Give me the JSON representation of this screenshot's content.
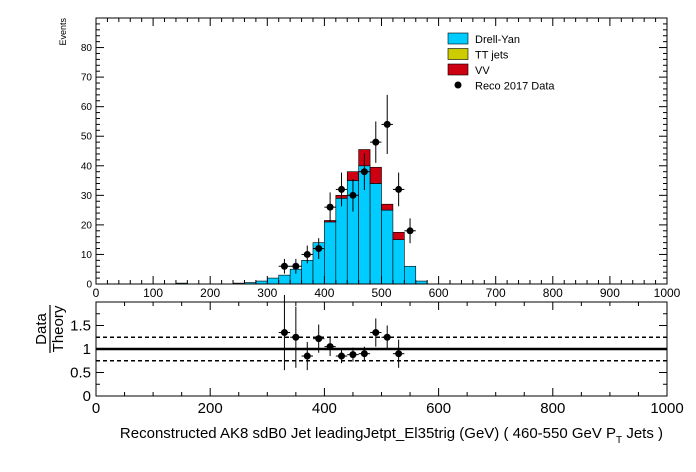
{
  "chart_data": [
    {
      "type": "bar",
      "stacked": true,
      "ylabel": "Events",
      "xlim": [
        0,
        1000
      ],
      "ylim": [
        0,
        90
      ],
      "x_ticks": [
        0,
        100,
        200,
        300,
        400,
        500,
        600,
        700,
        800,
        900,
        1000
      ],
      "y_ticks": [
        0,
        10,
        20,
        30,
        40,
        50,
        60,
        70,
        80
      ],
      "bin_width": 20,
      "legend_position": "top-right",
      "legend": [
        {
          "label": "Drell-Yan",
          "kind": "fill",
          "color": "#00ccff"
        },
        {
          "label": "TT jets",
          "kind": "fill",
          "color": "#cccc00"
        },
        {
          "label": "VV",
          "kind": "fill",
          "color": "#cc0011"
        },
        {
          "label": "Reco 2017 Data",
          "kind": "marker",
          "color": "#000000"
        }
      ],
      "series": [
        {
          "name": "Drell-Yan",
          "color": "#00ccff",
          "bins": [
            {
              "x0": 140,
              "value": 0.3
            },
            {
              "x0": 240,
              "value": 0.3
            },
            {
              "x0": 260,
              "value": 0.5
            },
            {
              "x0": 280,
              "value": 1
            },
            {
              "x0": 300,
              "value": 2
            },
            {
              "x0": 320,
              "value": 3
            },
            {
              "x0": 340,
              "value": 5
            },
            {
              "x0": 360,
              "value": 8
            },
            {
              "x0": 380,
              "value": 14
            },
            {
              "x0": 400,
              "value": 21
            },
            {
              "x0": 420,
              "value": 29
            },
            {
              "x0": 440,
              "value": 35
            },
            {
              "x0": 460,
              "value": 40
            },
            {
              "x0": 480,
              "value": 34
            },
            {
              "x0": 500,
              "value": 25
            },
            {
              "x0": 520,
              "value": 15
            },
            {
              "x0": 540,
              "value": 6
            },
            {
              "x0": 560,
              "value": 1
            }
          ]
        },
        {
          "name": "VV",
          "color": "#cc0011",
          "bins": [
            {
              "x0": 400,
              "value": 0.5
            },
            {
              "x0": 420,
              "value": 1
            },
            {
              "x0": 440,
              "value": 3
            },
            {
              "x0": 460,
              "value": 5.5
            },
            {
              "x0": 480,
              "value": 5.5
            },
            {
              "x0": 500,
              "value": 2
            },
            {
              "x0": 520,
              "value": 2.5
            }
          ]
        }
      ],
      "data_points": [
        {
          "x": 330,
          "y": 6,
          "err": 2.5
        },
        {
          "x": 350,
          "y": 6,
          "err": 2.5
        },
        {
          "x": 370,
          "y": 10,
          "err": 3
        },
        {
          "x": 390,
          "y": 12,
          "err": 3.5
        },
        {
          "x": 410,
          "y": 26,
          "err": 5
        },
        {
          "x": 430,
          "y": 32,
          "err": 5.7
        },
        {
          "x": 450,
          "y": 30,
          "err": 5.5
        },
        {
          "x": 470,
          "y": 38,
          "err": 6.2
        },
        {
          "x": 490,
          "y": 48,
          "err": 7
        },
        {
          "x": 510,
          "y": 54,
          "err": 10
        },
        {
          "x": 530,
          "y": 32,
          "err": 5.7
        },
        {
          "x": 550,
          "y": 18,
          "err": 4.2
        }
      ]
    },
    {
      "type": "scatter",
      "ylabel_top": "Data",
      "ylabel_bottom": "Theory",
      "xlabel": "Reconstructed AK8 sdB0 Jet leadingJetpt_El35trig (GeV) ( 460-550 GeV P",
      "xlabel_subscript": "T",
      "xlabel_suffix": " Jets  )",
      "xlim": [
        0,
        1000
      ],
      "ylim": [
        0,
        2
      ],
      "x_ticks": [
        0,
        200,
        400,
        600,
        800,
        1000
      ],
      "y_ticks": [
        0,
        0.5,
        1,
        1.5
      ],
      "reference_line": 1,
      "band_lines": [
        0.75,
        1.25
      ],
      "points": [
        {
          "x": 330,
          "y": 1.35,
          "err": 0.8
        },
        {
          "x": 350,
          "y": 1.25,
          "err": 0.65
        },
        {
          "x": 370,
          "y": 0.85,
          "err": 0.3
        },
        {
          "x": 390,
          "y": 1.22,
          "err": 0.3
        },
        {
          "x": 410,
          "y": 1.05,
          "err": 0.2
        },
        {
          "x": 430,
          "y": 0.85,
          "err": 0.15
        },
        {
          "x": 450,
          "y": 0.88,
          "err": 0.15
        },
        {
          "x": 470,
          "y": 0.9,
          "err": 0.15
        },
        {
          "x": 490,
          "y": 1.35,
          "err": 0.3
        },
        {
          "x": 510,
          "y": 1.25,
          "err": 0.25
        },
        {
          "x": 530,
          "y": 0.9,
          "err": 0.3
        }
      ]
    }
  ]
}
